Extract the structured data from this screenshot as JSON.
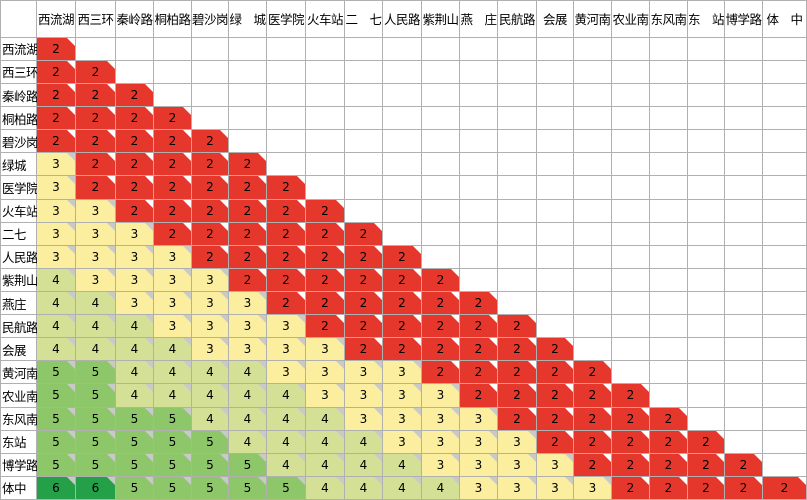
{
  "stations": [
    "西流湖",
    "西三环",
    "秦岭路",
    "桐柏路",
    "碧沙岗",
    "绿城",
    "医学院",
    "火车站",
    "二七",
    "人民路",
    "紫荆山",
    "燕庄",
    "民航路",
    "会展",
    "黄河南",
    "农业南",
    "东风南",
    "东站",
    "博学路",
    "体中"
  ],
  "header_labels": [
    "西流湖",
    "西三环",
    "秦岭路",
    "桐柏路",
    "碧沙岗",
    "绿　城",
    "医学院",
    "火车站",
    "二　七",
    "人民路",
    "紫荆山",
    "燕　庄",
    "民航路",
    "会展",
    "黄河南",
    "农业南",
    "东风南",
    "东　站",
    "博学路",
    "体　中"
  ],
  "row_labels": [
    "西流湖",
    "西三环",
    "秦岭路",
    "桐柏路",
    "碧沙岗",
    "绿城",
    "医学院",
    "火车站",
    "二七",
    "人民路",
    "紫荆山",
    "燕庄",
    "民航路",
    "会展",
    "黄河南",
    "农业南",
    "东风南",
    "东站",
    "博学路",
    "体中"
  ],
  "fares": [
    [
      2
    ],
    [
      2,
      2
    ],
    [
      2,
      2,
      2
    ],
    [
      2,
      2,
      2,
      2
    ],
    [
      2,
      2,
      2,
      2,
      2
    ],
    [
      3,
      2,
      2,
      2,
      2,
      2
    ],
    [
      3,
      2,
      2,
      2,
      2,
      2,
      2
    ],
    [
      3,
      3,
      2,
      2,
      2,
      2,
      2,
      2
    ],
    [
      3,
      3,
      3,
      2,
      2,
      2,
      2,
      2,
      2
    ],
    [
      3,
      3,
      3,
      3,
      2,
      2,
      2,
      2,
      2,
      2
    ],
    [
      4,
      3,
      3,
      3,
      3,
      2,
      2,
      2,
      2,
      2,
      2
    ],
    [
      4,
      4,
      3,
      3,
      3,
      3,
      2,
      2,
      2,
      2,
      2,
      2
    ],
    [
      4,
      4,
      4,
      3,
      3,
      3,
      3,
      2,
      2,
      2,
      2,
      2,
      2
    ],
    [
      4,
      4,
      4,
      4,
      3,
      3,
      3,
      3,
      2,
      2,
      2,
      2,
      2,
      2
    ],
    [
      5,
      5,
      4,
      4,
      4,
      4,
      3,
      3,
      3,
      3,
      2,
      2,
      2,
      2,
      2
    ],
    [
      5,
      5,
      4,
      4,
      4,
      4,
      4,
      3,
      3,
      3,
      3,
      2,
      2,
      2,
      2,
      2
    ],
    [
      5,
      5,
      5,
      5,
      4,
      4,
      4,
      4,
      3,
      3,
      3,
      3,
      2,
      2,
      2,
      2,
      2
    ],
    [
      5,
      5,
      5,
      5,
      5,
      4,
      4,
      4,
      4,
      3,
      3,
      3,
      3,
      2,
      2,
      2,
      2,
      2
    ],
    [
      5,
      5,
      5,
      5,
      5,
      5,
      4,
      4,
      4,
      4,
      3,
      3,
      3,
      3,
      2,
      2,
      2,
      2,
      2
    ],
    [
      6,
      6,
      5,
      5,
      5,
      5,
      5,
      4,
      4,
      4,
      4,
      3,
      3,
      3,
      3,
      2,
      2,
      2,
      2,
      2
    ]
  ],
  "fare_colors": {
    "2": "#e5372b",
    "3": "#fbef9f",
    "4": "#d3e095",
    "5": "#8dc76a",
    "6": "#24a048"
  }
}
